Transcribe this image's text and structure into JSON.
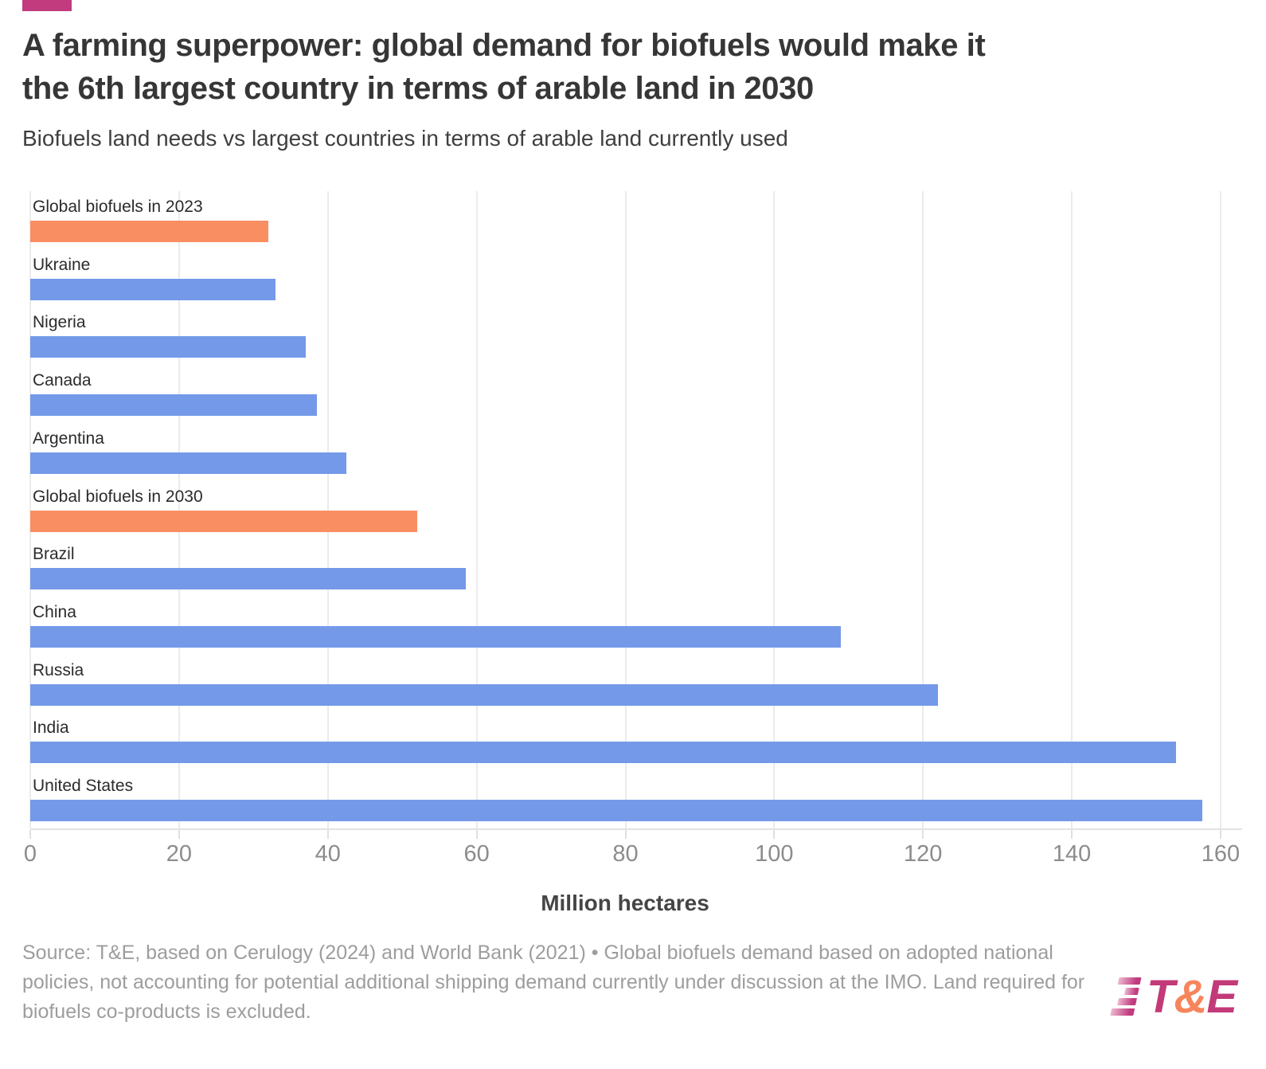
{
  "header": {
    "accent_color": "#c23b7f",
    "title_line1": "A farming superpower: global demand for biofuels would make it",
    "title_line2": "the 6th largest country in terms of arable land in 2030",
    "subtitle": "Biofuels land needs vs largest countries in terms of arable land currently used"
  },
  "chart_data": {
    "type": "bar",
    "orientation": "horizontal",
    "title": "A farming superpower: global demand for biofuels would make it the 6th largest country in terms of arable land in 2030",
    "subtitle": "Biofuels land needs vs largest countries in terms of arable land currently used",
    "categories": [
      "Global biofuels in 2023",
      "Ukraine",
      "Nigeria",
      "Canada",
      "Argentina",
      "Global biofuels in 2030",
      "Brazil",
      "China",
      "Russia",
      "India",
      "United States"
    ],
    "values": [
      32,
      33,
      37,
      38.5,
      42.5,
      52,
      58.5,
      109,
      122,
      154,
      157.5
    ],
    "bar_colors": [
      "#f98e62",
      "#7499e9",
      "#7499e9",
      "#7499e9",
      "#7499e9",
      "#f98e62",
      "#7499e9",
      "#7499e9",
      "#7499e9",
      "#7499e9",
      "#7499e9"
    ],
    "highlight_color": "#f98e62",
    "base_color": "#7499e9",
    "xlabel": "Million hectares",
    "ylabel": "",
    "xlim": [
      0,
      160
    ],
    "xticks": [
      0,
      20,
      40,
      60,
      80,
      100,
      120,
      140,
      160
    ],
    "grid": true,
    "legend": "none"
  },
  "footer": {
    "source_text": "Source: T&E, based on Cerulogy (2024) and World Bank (2021) • Global biofuels demand based on adopted national policies, not accounting for potential additional shipping demand currently under discussion at the IMO. Land required for biofuels co-products is excluded."
  },
  "logo": {
    "text_t": "T",
    "text_amp": "&",
    "text_e": "E",
    "t_color": "#c23a78",
    "amp_color": "#f6855c",
    "e_color": "#c23a78"
  }
}
